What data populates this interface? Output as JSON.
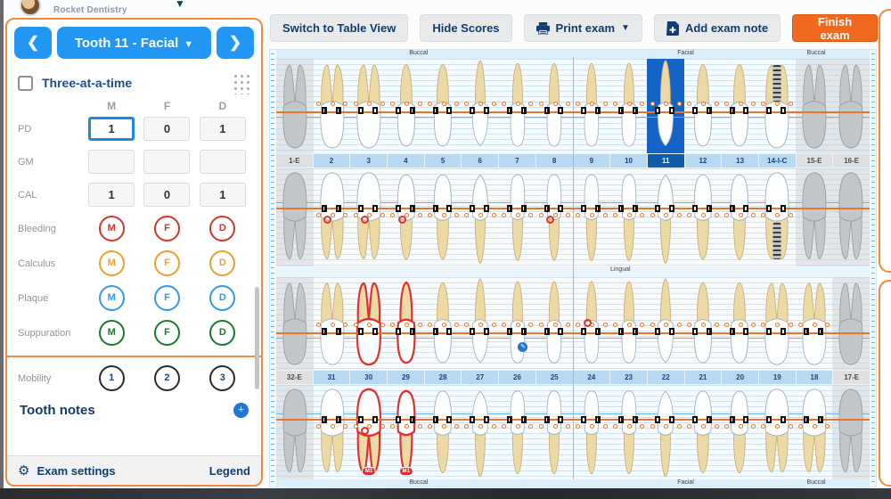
{
  "window": {
    "practice_name": "Rocket Dentistry"
  },
  "toolbar": {
    "switch_view": "Switch to Table View",
    "hide_scores": "Hide Scores",
    "print_exam": "Print exam",
    "add_exam_note": "Add exam note",
    "finish_exam": "Finish exam"
  },
  "left_panel": {
    "tooth_selector": {
      "label": "Tooth 11 - Facial"
    },
    "three_at_a_time": "Three-at-a-time",
    "columns": [
      "M",
      "F",
      "D"
    ],
    "rows": [
      {
        "label": "PD",
        "type": "inputs",
        "values": [
          "1",
          "0",
          "1"
        ],
        "focused": 0
      },
      {
        "label": "GM",
        "type": "inputs",
        "values": [
          "",
          "",
          ""
        ]
      },
      {
        "label": "CAL",
        "type": "inputs",
        "values": [
          "1",
          "0",
          "1"
        ]
      },
      {
        "label": "Bleeding",
        "type": "circles",
        "letters": [
          "M",
          "F",
          "D"
        ],
        "color": "#d9342b"
      },
      {
        "label": "Calculus",
        "type": "circles",
        "letters": [
          "M",
          "F",
          "D"
        ],
        "color": "#f0a02e"
      },
      {
        "label": "Plaque",
        "type": "circles",
        "letters": [
          "M",
          "F",
          "D"
        ],
        "color": "#2e9bf0"
      },
      {
        "label": "Suppuration",
        "type": "circles",
        "letters": [
          "M",
          "F",
          "D"
        ],
        "color": "#1a7a2e"
      },
      {
        "label": "Mobility",
        "type": "circles",
        "letters": [
          "1",
          "2",
          "3"
        ],
        "color": "#2b2b2b"
      }
    ],
    "tooth_notes_label": "Tooth notes",
    "footer": {
      "exam_settings": "Exam settings",
      "legend": "Legend"
    }
  },
  "chart": {
    "view_labels": {
      "top": [
        "Buccal",
        "Facial",
        "Buccal"
      ],
      "middle": "Lingual",
      "bottom": [
        "Buccal",
        "Facial",
        "Buccal"
      ]
    },
    "selected_tooth": "11",
    "upper_teeth": [
      {
        "label": "1-E",
        "type": "molar",
        "state": "missing"
      },
      {
        "label": "2",
        "type": "molar",
        "state": ""
      },
      {
        "label": "3",
        "type": "molar",
        "state": ""
      },
      {
        "label": "4",
        "type": "premolar",
        "state": ""
      },
      {
        "label": "5",
        "type": "premolar",
        "state": ""
      },
      {
        "label": "6",
        "type": "canine",
        "state": ""
      },
      {
        "label": "7",
        "type": "incisor",
        "state": ""
      },
      {
        "label": "8",
        "type": "incisor",
        "state": ""
      },
      {
        "label": "9",
        "type": "incisor",
        "state": ""
      },
      {
        "label": "10",
        "type": "incisor",
        "state": ""
      },
      {
        "label": "11",
        "type": "canine",
        "state": "selected"
      },
      {
        "label": "12",
        "type": "premolar",
        "state": ""
      },
      {
        "label": "13",
        "type": "premolar",
        "state": ""
      },
      {
        "label": "14-I-C",
        "type": "molar",
        "state": "implant"
      },
      {
        "label": "15-E",
        "type": "molar",
        "state": "missing"
      },
      {
        "label": "16-E",
        "type": "molar",
        "state": "missing"
      }
    ],
    "lower_teeth": [
      {
        "label": "32-E",
        "type": "molar",
        "state": "missing"
      },
      {
        "label": "31",
        "type": "molar",
        "state": ""
      },
      {
        "label": "30",
        "type": "molar",
        "state": "outlined"
      },
      {
        "label": "29",
        "type": "premolar",
        "state": "outlined"
      },
      {
        "label": "28",
        "type": "premolar",
        "state": ""
      },
      {
        "label": "27",
        "type": "canine",
        "state": ""
      },
      {
        "label": "26",
        "type": "incisor",
        "state": ""
      },
      {
        "label": "25",
        "type": "incisor",
        "state": ""
      },
      {
        "label": "24",
        "type": "incisor",
        "state": ""
      },
      {
        "label": "23",
        "type": "incisor",
        "state": ""
      },
      {
        "label": "22",
        "type": "canine",
        "state": ""
      },
      {
        "label": "21",
        "type": "premolar",
        "state": ""
      },
      {
        "label": "20",
        "type": "premolar",
        "state": ""
      },
      {
        "label": "19",
        "type": "molar",
        "state": ""
      },
      {
        "label": "18",
        "type": "molar",
        "state": ""
      },
      {
        "label": "17-E",
        "type": "molar",
        "state": "missing"
      }
    ],
    "red_rings": [
      {
        "row": 2,
        "cell": 1
      },
      {
        "row": 2,
        "cell": 2
      },
      {
        "row": 2,
        "cell": 3
      },
      {
        "row": 2,
        "cell": 7
      },
      {
        "row": 3,
        "cell": 8
      },
      {
        "row": 4,
        "cell": 2
      }
    ],
    "badges": [
      {
        "row": 4,
        "cell": 2,
        "label": "M1"
      },
      {
        "row": 4,
        "cell": 3,
        "label": "M1"
      }
    ],
    "note_marker": {
      "row": 3,
      "cell": 6
    },
    "accent_colors": {
      "gum_line": "#e8762a",
      "selection": "#1464c8",
      "outline": "#e0312e",
      "panel_border": "#f08a3c"
    }
  }
}
